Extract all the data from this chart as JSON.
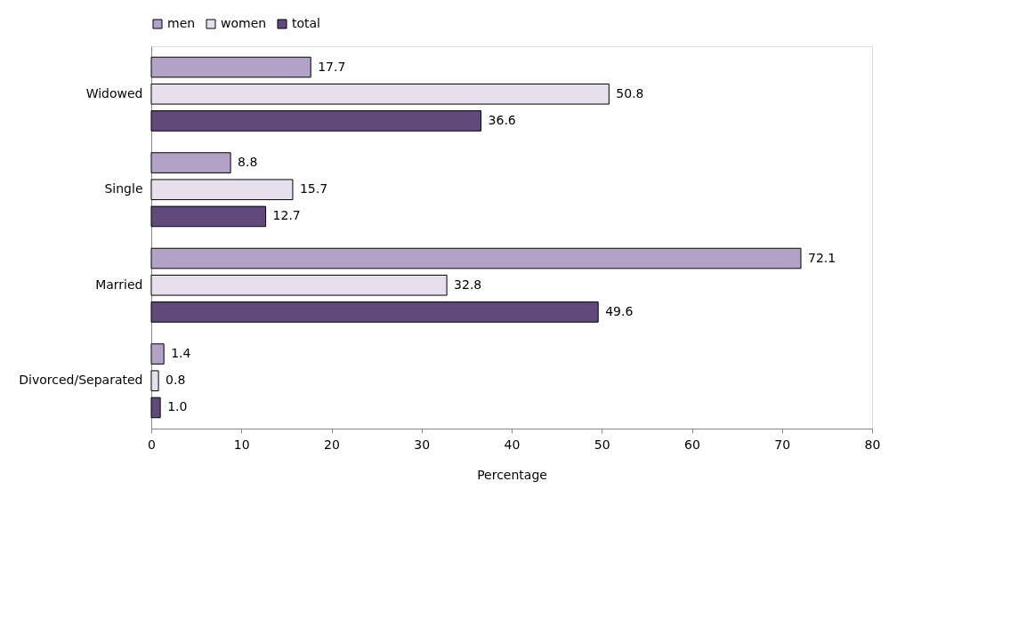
{
  "chart_data": {
    "type": "bar",
    "orientation": "horizontal",
    "xlabel": "Percentage",
    "categories": [
      "Widowed",
      "Single",
      "Married",
      "Divorced/Separated"
    ],
    "series": [
      {
        "name": "men",
        "color": "#b3a2c7",
        "values": [
          17.7,
          8.8,
          72.1,
          1.4
        ],
        "value_labels": [
          "17.7",
          "8.8",
          "72.1",
          "1.4"
        ]
      },
      {
        "name": "women",
        "color": "#e6e0ec",
        "values": [
          50.8,
          15.7,
          32.8,
          0.8
        ],
        "value_labels": [
          "50.8",
          "15.7",
          "32.8",
          "0.8"
        ]
      },
      {
        "name": "total",
        "color": "#604a7b",
        "values": [
          36.6,
          12.7,
          49.6,
          1.0
        ],
        "value_labels": [
          "36.6",
          "12.7",
          "49.6",
          "1.0"
        ]
      }
    ],
    "xlim": [
      0,
      80
    ],
    "xticks": [
      0,
      10,
      20,
      30,
      40,
      50,
      60,
      70,
      80
    ],
    "legend": "top",
    "grid": false
  }
}
